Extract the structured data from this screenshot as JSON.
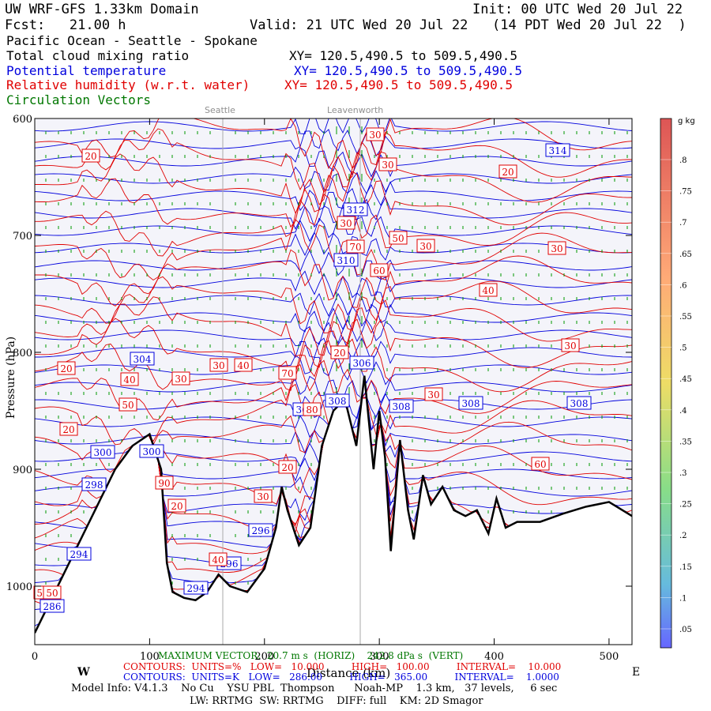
{
  "header": {
    "model": "UW WRF-GFS 1.33km Domain",
    "init": "Init: 00 UTC Wed 20 Jul 22",
    "fcst": "Fcst:   21.00 h",
    "valid": "Valid: 21 UTC Wed 20 Jul 22   (14 PDT Wed 20 Jul 22  )",
    "region": "Pacific Ocean - Seattle - Spokane",
    "field1": "Total cloud mixing ratio",
    "field1_xy": "XY= 120.5,490.5 to 509.5,490.5",
    "field2": "Potential temperature",
    "field2_xy": "XY= 120.5,490.5 to 509.5,490.5",
    "field3": "Relative humidity (w.r.t. water)",
    "field3_xy": "XY= 120.5,490.5 to 509.5,490.5",
    "field4": "Circulation Vectors"
  },
  "places": {
    "seattle": "Seattle",
    "leavenworth": "Leavenworth"
  },
  "colors": {
    "theta": "#0000dd",
    "rh": "#e00000",
    "vectors": "#009900",
    "terrain": "#000000",
    "bg": "#f4f4fa"
  },
  "chart_data": {
    "type": "cross-section",
    "xlabel": "Distance (km)",
    "ylabel": "Pressure (hPa)",
    "xlim": [
      0,
      520
    ],
    "ylim": [
      1050,
      600
    ],
    "x_ticks": [
      "0",
      "100",
      "200",
      "300",
      "400",
      "500"
    ],
    "y_ticks": [
      "600",
      "700",
      "800",
      "900",
      "1000"
    ],
    "west_label": "W",
    "east_label": "E",
    "terrain": [
      [
        0,
        1040
      ],
      [
        10,
        1020
      ],
      [
        25,
        990
      ],
      [
        40,
        960
      ],
      [
        55,
        930
      ],
      [
        70,
        900
      ],
      [
        85,
        880
      ],
      [
        100,
        870
      ],
      [
        110,
        900
      ],
      [
        115,
        980
      ],
      [
        120,
        1005
      ],
      [
        130,
        1010
      ],
      [
        140,
        1012
      ],
      [
        150,
        1005
      ],
      [
        160,
        990
      ],
      [
        170,
        1000
      ],
      [
        185,
        1005
      ],
      [
        200,
        985
      ],
      [
        210,
        950
      ],
      [
        215,
        915
      ],
      [
        220,
        935
      ],
      [
        230,
        965
      ],
      [
        240,
        950
      ],
      [
        250,
        880
      ],
      [
        260,
        850
      ],
      [
        270,
        840
      ],
      [
        280,
        880
      ],
      [
        287,
        820
      ],
      [
        295,
        900
      ],
      [
        300,
        850
      ],
      [
        305,
        890
      ],
      [
        310,
        970
      ],
      [
        318,
        875
      ],
      [
        325,
        935
      ],
      [
        330,
        960
      ],
      [
        338,
        905
      ],
      [
        345,
        930
      ],
      [
        355,
        915
      ],
      [
        365,
        935
      ],
      [
        375,
        940
      ],
      [
        385,
        935
      ],
      [
        395,
        955
      ],
      [
        402,
        925
      ],
      [
        410,
        950
      ],
      [
        420,
        945
      ],
      [
        440,
        945
      ],
      [
        460,
        938
      ],
      [
        480,
        932
      ],
      [
        500,
        928
      ],
      [
        520,
        940
      ]
    ],
    "theta_labels": [
      "314",
      "312",
      "310",
      "306",
      "308",
      "308",
      "308",
      "308",
      "304",
      "306",
      "300",
      "300",
      "298",
      "296",
      "294",
      "296",
      "294",
      "286"
    ],
    "rh_labels": [
      "20",
      "20",
      "30",
      "30",
      "30",
      "30",
      "30",
      "40",
      "40",
      "50",
      "50",
      "30",
      "30",
      "40",
      "20",
      "20",
      "30",
      "30",
      "50",
      "20",
      "20",
      "60",
      "70",
      "80",
      "50",
      "40",
      "30",
      "20",
      "90",
      "70",
      "60"
    ],
    "colorbar": {
      "unit": "g kg",
      "ticks": [
        ".8",
        ".75",
        ".7",
        ".65",
        ".6",
        ".55",
        ".5",
        ".45",
        ".4",
        ".35",
        ".3",
        ".25",
        ".2",
        ".15",
        ".1",
        ".05"
      ]
    }
  },
  "footer": {
    "max_vector": "MAXIMUM VECTOR:  20.7 m s  (HORIZ)    242.8 dPa s  (VERT)",
    "contours_rh": "CONTOURS:  UNITS=%   LOW=   10.000         HIGH=   100.00         INTERVAL=    10.000",
    "contours_theta": "CONTOURS:  UNITS=K   LOW=   286.00         HIGH=   365.00         INTERVAL=    1.0000",
    "model_info": "Model Info: V4.1.3    No Cu    YSU PBL  Thompson      Noah-MP    1.3 km,   37 levels,     6 sec",
    "model_info2": "LW: RRTMG  SW: RRTMG    DIFF: full    KM: 2D Smagor"
  }
}
